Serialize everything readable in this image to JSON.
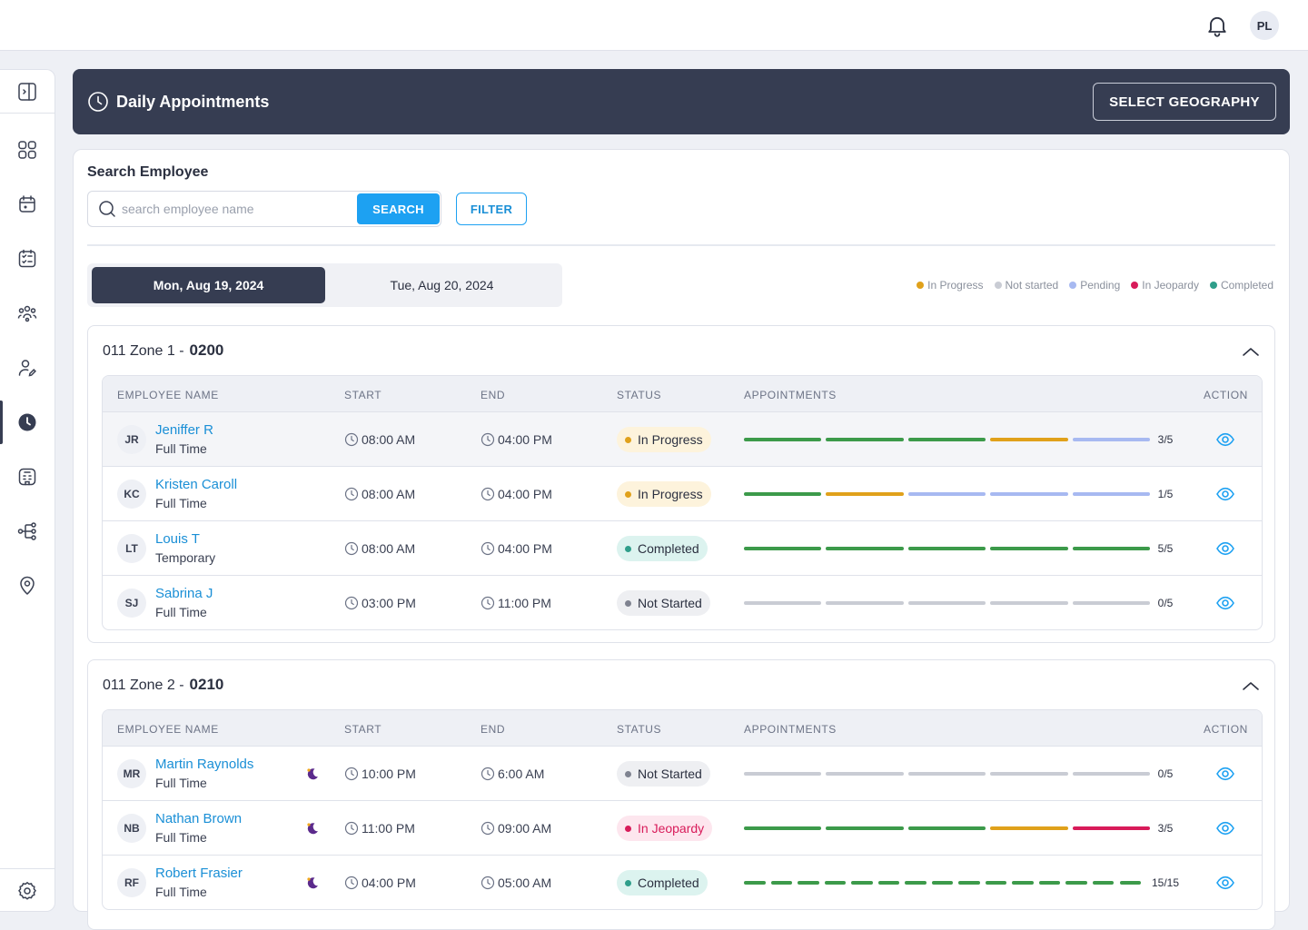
{
  "colors": {
    "accent": "#1da1f2",
    "dark_header": "#363d52",
    "in_progress": "#e0a11b",
    "not_started": "#c9ccd4",
    "pending": "#a7b9f1",
    "in_jeopardy": "#d81b5a",
    "completed": "#3c9a4a",
    "completed_badge_dot": "#2f9e8a"
  },
  "topbar": {
    "notification_icon": "bell-icon",
    "user_initials": "PL"
  },
  "sidebar": {
    "items": [
      {
        "icon": "collapse-panel-icon"
      },
      {
        "icon": "dashboard-grid-icon"
      },
      {
        "icon": "calendar-icon"
      },
      {
        "icon": "checklist-icon"
      },
      {
        "icon": "team-icon"
      },
      {
        "icon": "user-edit-icon"
      },
      {
        "icon": "clock-icon",
        "active": true
      },
      {
        "icon": "building-icon"
      },
      {
        "icon": "workflow-icon"
      },
      {
        "icon": "location-pin-icon"
      },
      {
        "icon": "settings-gear-icon"
      }
    ]
  },
  "header": {
    "title": "Daily Appointments",
    "geo_button": "SELECT GEOGRAPHY"
  },
  "search": {
    "label": "Search Employee",
    "placeholder": "search employee name",
    "search_button": "SEARCH",
    "filter_button": "FILTER"
  },
  "date_tabs": [
    {
      "label": "Mon, Aug 19, 2024",
      "active": true
    },
    {
      "label": "Tue, Aug 20, 2024",
      "active": false
    }
  ],
  "legend": [
    {
      "label": "In Progress",
      "color": "#e0a11b"
    },
    {
      "label": "Not started",
      "color": "#c9ccd4"
    },
    {
      "label": "Pending",
      "color": "#a7b9f1"
    },
    {
      "label": "In Jeopardy",
      "color": "#d81b5a"
    },
    {
      "label": "Completed",
      "color": "#3c9a4a"
    }
  ],
  "columns": {
    "employee": "EMPLOYEE NAME",
    "start": "START",
    "end": "END",
    "status": "STATUS",
    "appointments": "APPOINTMENTS",
    "action": "ACTION"
  },
  "zones": [
    {
      "name": "011 Zone 1 -",
      "code": "0200",
      "rows": [
        {
          "initials": "JR",
          "name": "Jeniffer R",
          "type": "Full Time",
          "night": false,
          "start": "08:00 AM",
          "end": "04:00 PM",
          "status": "In Progress",
          "segments": [
            "completed",
            "completed",
            "completed",
            "in_progress",
            "pending"
          ],
          "count": "3/5",
          "highlight": true
        },
        {
          "initials": "KC",
          "name": "Kristen Caroll",
          "type": "Full Time",
          "night": false,
          "start": "08:00 AM",
          "end": "04:00 PM",
          "status": "In Progress",
          "segments": [
            "completed",
            "in_progress",
            "pending",
            "pending",
            "pending"
          ],
          "count": "1/5"
        },
        {
          "initials": "LT",
          "name": "Louis T",
          "type": "Temporary",
          "night": false,
          "start": "08:00 AM",
          "end": "04:00 PM",
          "status": "Completed",
          "segments": [
            "completed",
            "completed",
            "completed",
            "completed",
            "completed"
          ],
          "count": "5/5"
        },
        {
          "initials": "SJ",
          "name": "Sabrina J",
          "type": "Full Time",
          "night": false,
          "start": "03:00 PM",
          "end": "11:00 PM",
          "status": "Not Started",
          "segments": [
            "not_started",
            "not_started",
            "not_started",
            "not_started",
            "not_started"
          ],
          "count": "0/5"
        }
      ]
    },
    {
      "name": "011 Zone 2 -",
      "code": "0210",
      "rows": [
        {
          "initials": "MR",
          "name": "Martin Raynolds",
          "type": "Full Time",
          "night": true,
          "start": "10:00 PM",
          "end": "6:00 AM",
          "status": "Not Started",
          "segments": [
            "not_started",
            "not_started",
            "not_started",
            "not_started",
            "not_started"
          ],
          "count": "0/5"
        },
        {
          "initials": "NB",
          "name": "Nathan Brown",
          "type": "Full Time",
          "night": true,
          "start": "11:00 PM",
          "end": "09:00 AM",
          "status": "In Jeopardy",
          "segments": [
            "completed",
            "completed",
            "completed",
            "in_progress",
            "in_jeopardy"
          ],
          "count": "3/5"
        },
        {
          "initials": "RF",
          "name": "Robert Frasier",
          "type": "Full Time",
          "night": true,
          "start": "04:00 PM",
          "end": "05:00 AM",
          "status": "Completed",
          "segments": [
            "completed",
            "completed",
            "completed",
            "completed",
            "completed",
            "completed",
            "completed",
            "completed",
            "completed",
            "completed",
            "completed",
            "completed",
            "completed",
            "completed",
            "completed"
          ],
          "count": "15/15"
        }
      ]
    }
  ]
}
